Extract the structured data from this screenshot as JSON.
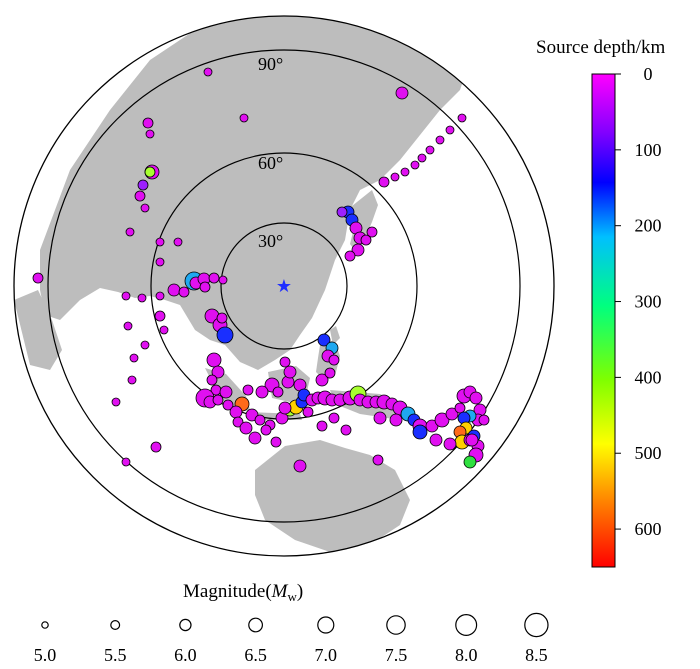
{
  "map": {
    "ring_labels": [
      "30°",
      "60°",
      "90°"
    ],
    "station_marker": "star-icon",
    "station_color": "#1f2fff"
  },
  "colorbar": {
    "title": "Source depth/km",
    "ticks": [
      "0",
      "100",
      "200",
      "300",
      "400",
      "500",
      "600"
    ],
    "range": [
      0,
      650
    ],
    "colors": [
      "#ff00ff",
      "#8000ff",
      "#0000ff",
      "#00bfff",
      "#00ff7f",
      "#7fff00",
      "#ffff00",
      "#ff8000",
      "#ff0000"
    ]
  },
  "magnitude_legend": {
    "title_prefix": "Magnitude(",
    "title_symbol": "M",
    "title_sub": "w",
    "title_suffix": ")",
    "values": [
      "5.0",
      "5.5",
      "6.0",
      "6.5",
      "7.0",
      "7.5",
      "8.0",
      "8.5"
    ]
  }
}
